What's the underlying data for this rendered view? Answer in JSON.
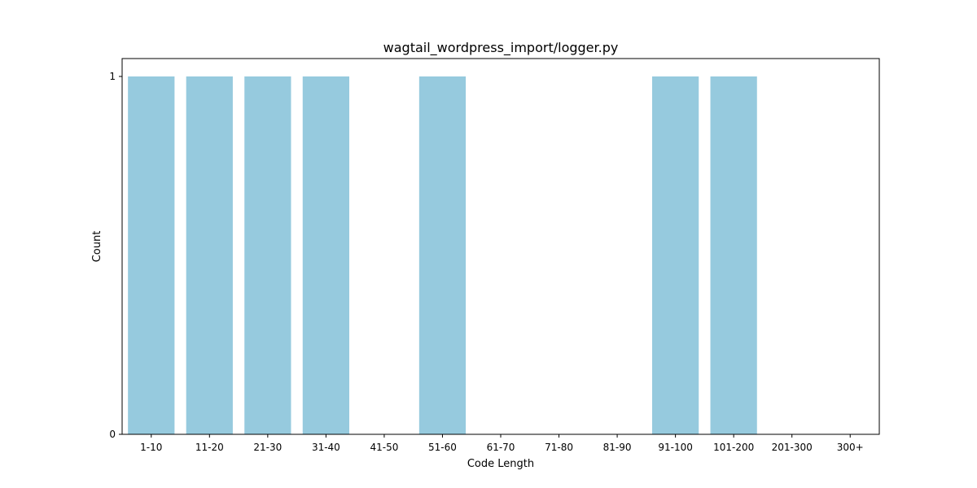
{
  "chart_data": {
    "type": "bar",
    "title": "wagtail_wordpress_import/logger.py",
    "xlabel": "Code Length",
    "ylabel": "Count",
    "categories": [
      "1-10",
      "11-20",
      "21-30",
      "31-40",
      "41-50",
      "51-60",
      "61-70",
      "71-80",
      "81-90",
      "91-100",
      "101-200",
      "201-300",
      "300+"
    ],
    "values": [
      1,
      1,
      1,
      1,
      0,
      1,
      0,
      0,
      0,
      1,
      1,
      0,
      0
    ],
    "yticks": [
      0,
      1
    ],
    "ylim": [
      0,
      1.05
    ],
    "grid": false,
    "legend": false,
    "bar_color": "#96cade"
  }
}
